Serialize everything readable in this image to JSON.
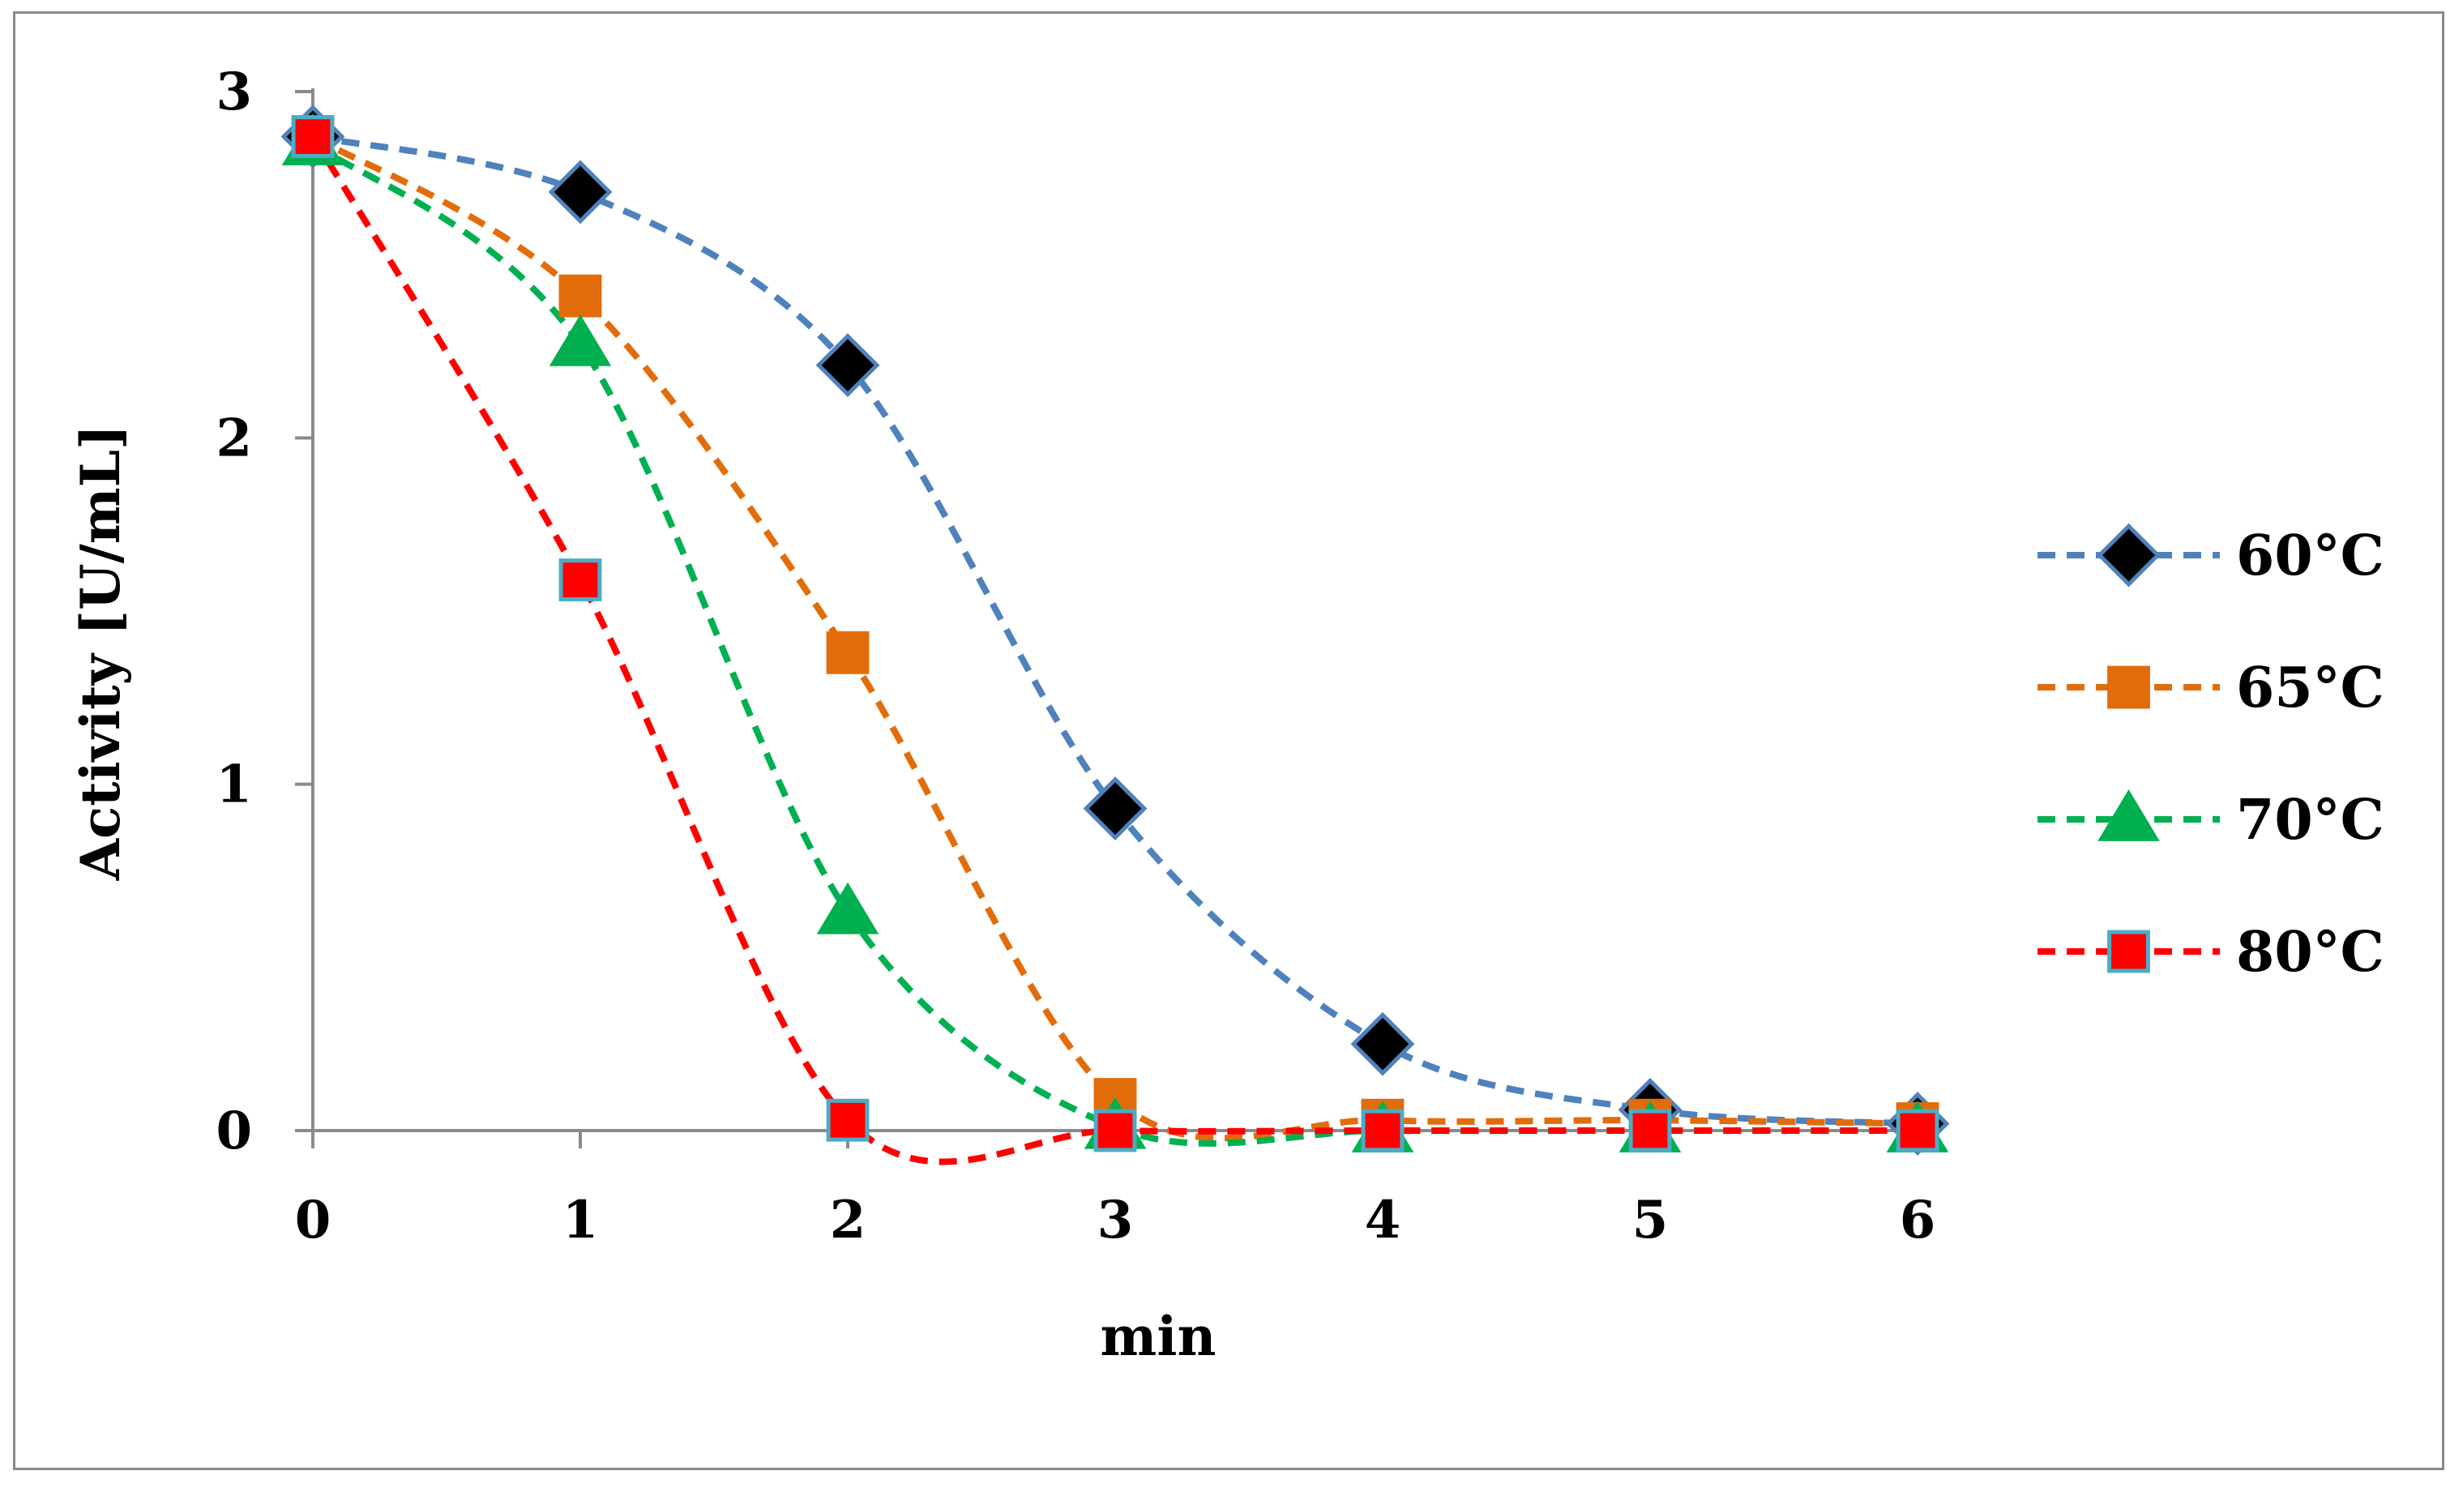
{
  "chart_data": {
    "type": "line",
    "title": "",
    "xlabel": "min",
    "ylabel": "Activity [U/mL]",
    "x": [
      0,
      1,
      2,
      3,
      4,
      5,
      6
    ],
    "xlim": [
      0,
      6
    ],
    "ylim": [
      0,
      3
    ],
    "x_ticks": [
      "0",
      "1",
      "2",
      "3",
      "4",
      "5",
      "6"
    ],
    "y_ticks": [
      "0",
      "1",
      "2",
      "3"
    ],
    "grid": false,
    "legend_position": "right",
    "line_style": "dashed-smooth",
    "series": [
      {
        "name": "60°C",
        "marker": "diamond",
        "color": "#4F81BD",
        "marker_fill": "#000000",
        "marker_stroke": "#4F81BD",
        "values": [
          2.87,
          2.71,
          2.21,
          0.93,
          0.25,
          0.06,
          0.02
        ]
      },
      {
        "name": "65°C",
        "marker": "square",
        "color": "#E36C0A",
        "marker_fill": "#E36C0A",
        "marker_stroke": "#E36C0A",
        "values": [
          2.87,
          2.41,
          1.38,
          0.09,
          0.03,
          0.03,
          0.02
        ]
      },
      {
        "name": "70°C",
        "marker": "triangle",
        "color": "#00B050",
        "marker_fill": "#00B050",
        "marker_stroke": "#00B050",
        "values": [
          2.85,
          2.27,
          0.63,
          0.01,
          0.0,
          0.0,
          0.0
        ]
      },
      {
        "name": "80°C",
        "marker": "square",
        "color": "#FF0000",
        "marker_fill": "#FF0000",
        "marker_stroke": "#4BACC6",
        "values": [
          2.87,
          1.59,
          0.03,
          0.0,
          0.0,
          0.0,
          0.0
        ]
      }
    ]
  }
}
